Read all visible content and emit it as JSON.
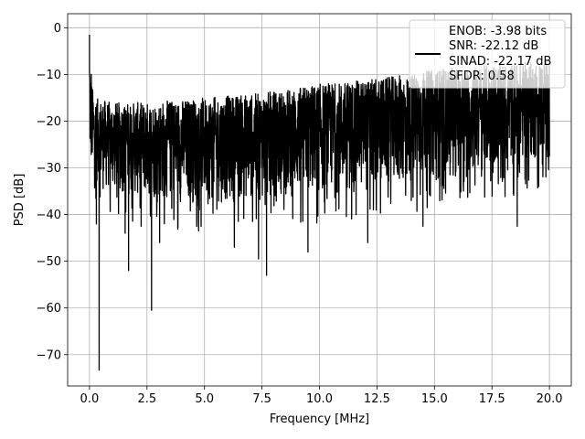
{
  "chart_data": {
    "type": "line",
    "title": "",
    "xlabel": "Frequency [MHz]",
    "ylabel": "PSD [dB]",
    "xlim": [
      -0.95,
      20.95
    ],
    "ylim": [
      -76.7,
      3.0
    ],
    "xticks": [
      0.0,
      2.5,
      5.0,
      7.5,
      10.0,
      12.5,
      15.0,
      17.5,
      20.0
    ],
    "xtick_labels": [
      "0.0",
      "2.5",
      "5.0",
      "7.5",
      "10.0",
      "12.5",
      "15.0",
      "17.5",
      "20.0"
    ],
    "yticks": [
      0,
      -10,
      -20,
      -30,
      -40,
      -50,
      -60,
      -70
    ],
    "ytick_labels": [
      "0",
      "−10",
      "−20",
      "−30",
      "−40",
      "−50",
      "−60",
      "−70"
    ],
    "grid": true,
    "legend_position": "top-right",
    "legend": [
      "ENOB: -3.98 bits",
      "SNR: -22.12 dB",
      "SINAD: -22.17 dB",
      "SFDR: 0.58"
    ],
    "series": [
      {
        "color": "#000000",
        "x_start": 0.0,
        "x_end": 20.0,
        "envelope_upper": [
          [
            0.0,
            -1.5
          ],
          [
            0.05,
            -10
          ],
          [
            0.2,
            -15
          ],
          [
            1.0,
            -16
          ],
          [
            2.5,
            -16
          ],
          [
            5.0,
            -15
          ],
          [
            7.5,
            -14
          ],
          [
            10.0,
            -12
          ],
          [
            12.5,
            -11
          ],
          [
            15.0,
            -9
          ],
          [
            17.5,
            -8
          ],
          [
            20.0,
            -7
          ]
        ],
        "envelope_lower": [
          [
            0.0,
            -31
          ],
          [
            0.5,
            -35
          ],
          [
            2.5,
            -37
          ],
          [
            5.0,
            -38
          ],
          [
            7.5,
            -37
          ],
          [
            10.0,
            -36
          ],
          [
            12.5,
            -35
          ],
          [
            15.0,
            -33
          ],
          [
            17.5,
            -31
          ],
          [
            20.0,
            -28
          ]
        ],
        "notable_points": [
          [
            0.0,
            -1.5
          ],
          [
            0.08,
            -10.0
          ],
          [
            0.3,
            -42.0
          ],
          [
            0.42,
            -73.3
          ],
          [
            1.55,
            -44.0
          ],
          [
            1.7,
            -52.0
          ],
          [
            2.7,
            -60.5
          ],
          [
            3.05,
            -46.0
          ],
          [
            6.3,
            -47.0
          ],
          [
            7.35,
            -49.5
          ],
          [
            7.7,
            -53.0
          ],
          [
            9.5,
            -48.0
          ],
          [
            12.1,
            -46.0
          ],
          [
            14.5,
            -42.5
          ],
          [
            18.6,
            -42.5
          ],
          [
            20.0,
            -27.5
          ]
        ]
      }
    ]
  },
  "colors": {
    "line": "#000000",
    "grid": "#b0b0b0",
    "background": "#ffffff"
  }
}
